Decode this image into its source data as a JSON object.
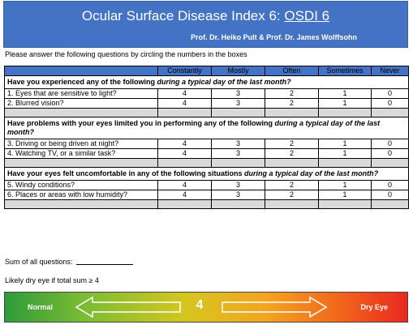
{
  "header": {
    "title_prefix": "Ocular Surface Disease Index 6: ",
    "title_link": "OSDI 6",
    "authors": "Prof. Dr. Heiko Pult & Prof. Dr. James Wolffsohn",
    "background_color": "#4472c4"
  },
  "instructions": "Please answer the following questions by circling the numbers in the boxes",
  "columns": [
    "Constantly",
    "Mostly",
    "Often",
    "Sometimes",
    "Never"
  ],
  "sections": [
    {
      "heading_plain": "Have you experienced any of the following ",
      "heading_italic": "during a typical day of the last month?",
      "questions": [
        {
          "label": "1. Eyes that are sensitive to light?",
          "scores": [
            "4",
            "3",
            "2",
            "1",
            "0"
          ]
        },
        {
          "label": "2. Blurred vision?",
          "scores": [
            "4",
            "3",
            "2",
            "1",
            "0"
          ]
        }
      ]
    },
    {
      "heading_plain": "Have problems with your eyes limited you in performing any of the following ",
      "heading_italic": "during a typical day of the last month?",
      "questions": [
        {
          "label": "3. Driving or being driven at night?",
          "scores": [
            "4",
            "3",
            "2",
            "1",
            "0"
          ]
        },
        {
          "label": "4. Watching TV, or a similar task?",
          "scores": [
            "4",
            "3",
            "2",
            "1",
            "0"
          ]
        }
      ]
    },
    {
      "heading_plain": "Have your eyes felt uncomfortable in any of the following situations ",
      "heading_italic": "during a typical day of the last month?",
      "questions": [
        {
          "label": "5. Windy conditions?",
          "scores": [
            "4",
            "3",
            "2",
            "1",
            "0"
          ]
        },
        {
          "label": "6. Places or areas with low humidity?",
          "scores": [
            "4",
            "3",
            "2",
            "1",
            "0"
          ]
        }
      ]
    }
  ],
  "sum_label": "Sum of all questions:",
  "threshold_note": "Likely dry eye if total sum ≥ 4",
  "scale": {
    "left_label": "Normal",
    "right_label": "Dry Eye",
    "value": "4",
    "gradient_colors": [
      "#2e9b3a",
      "#d6c61f",
      "#f4a321",
      "#ea2820"
    ]
  }
}
